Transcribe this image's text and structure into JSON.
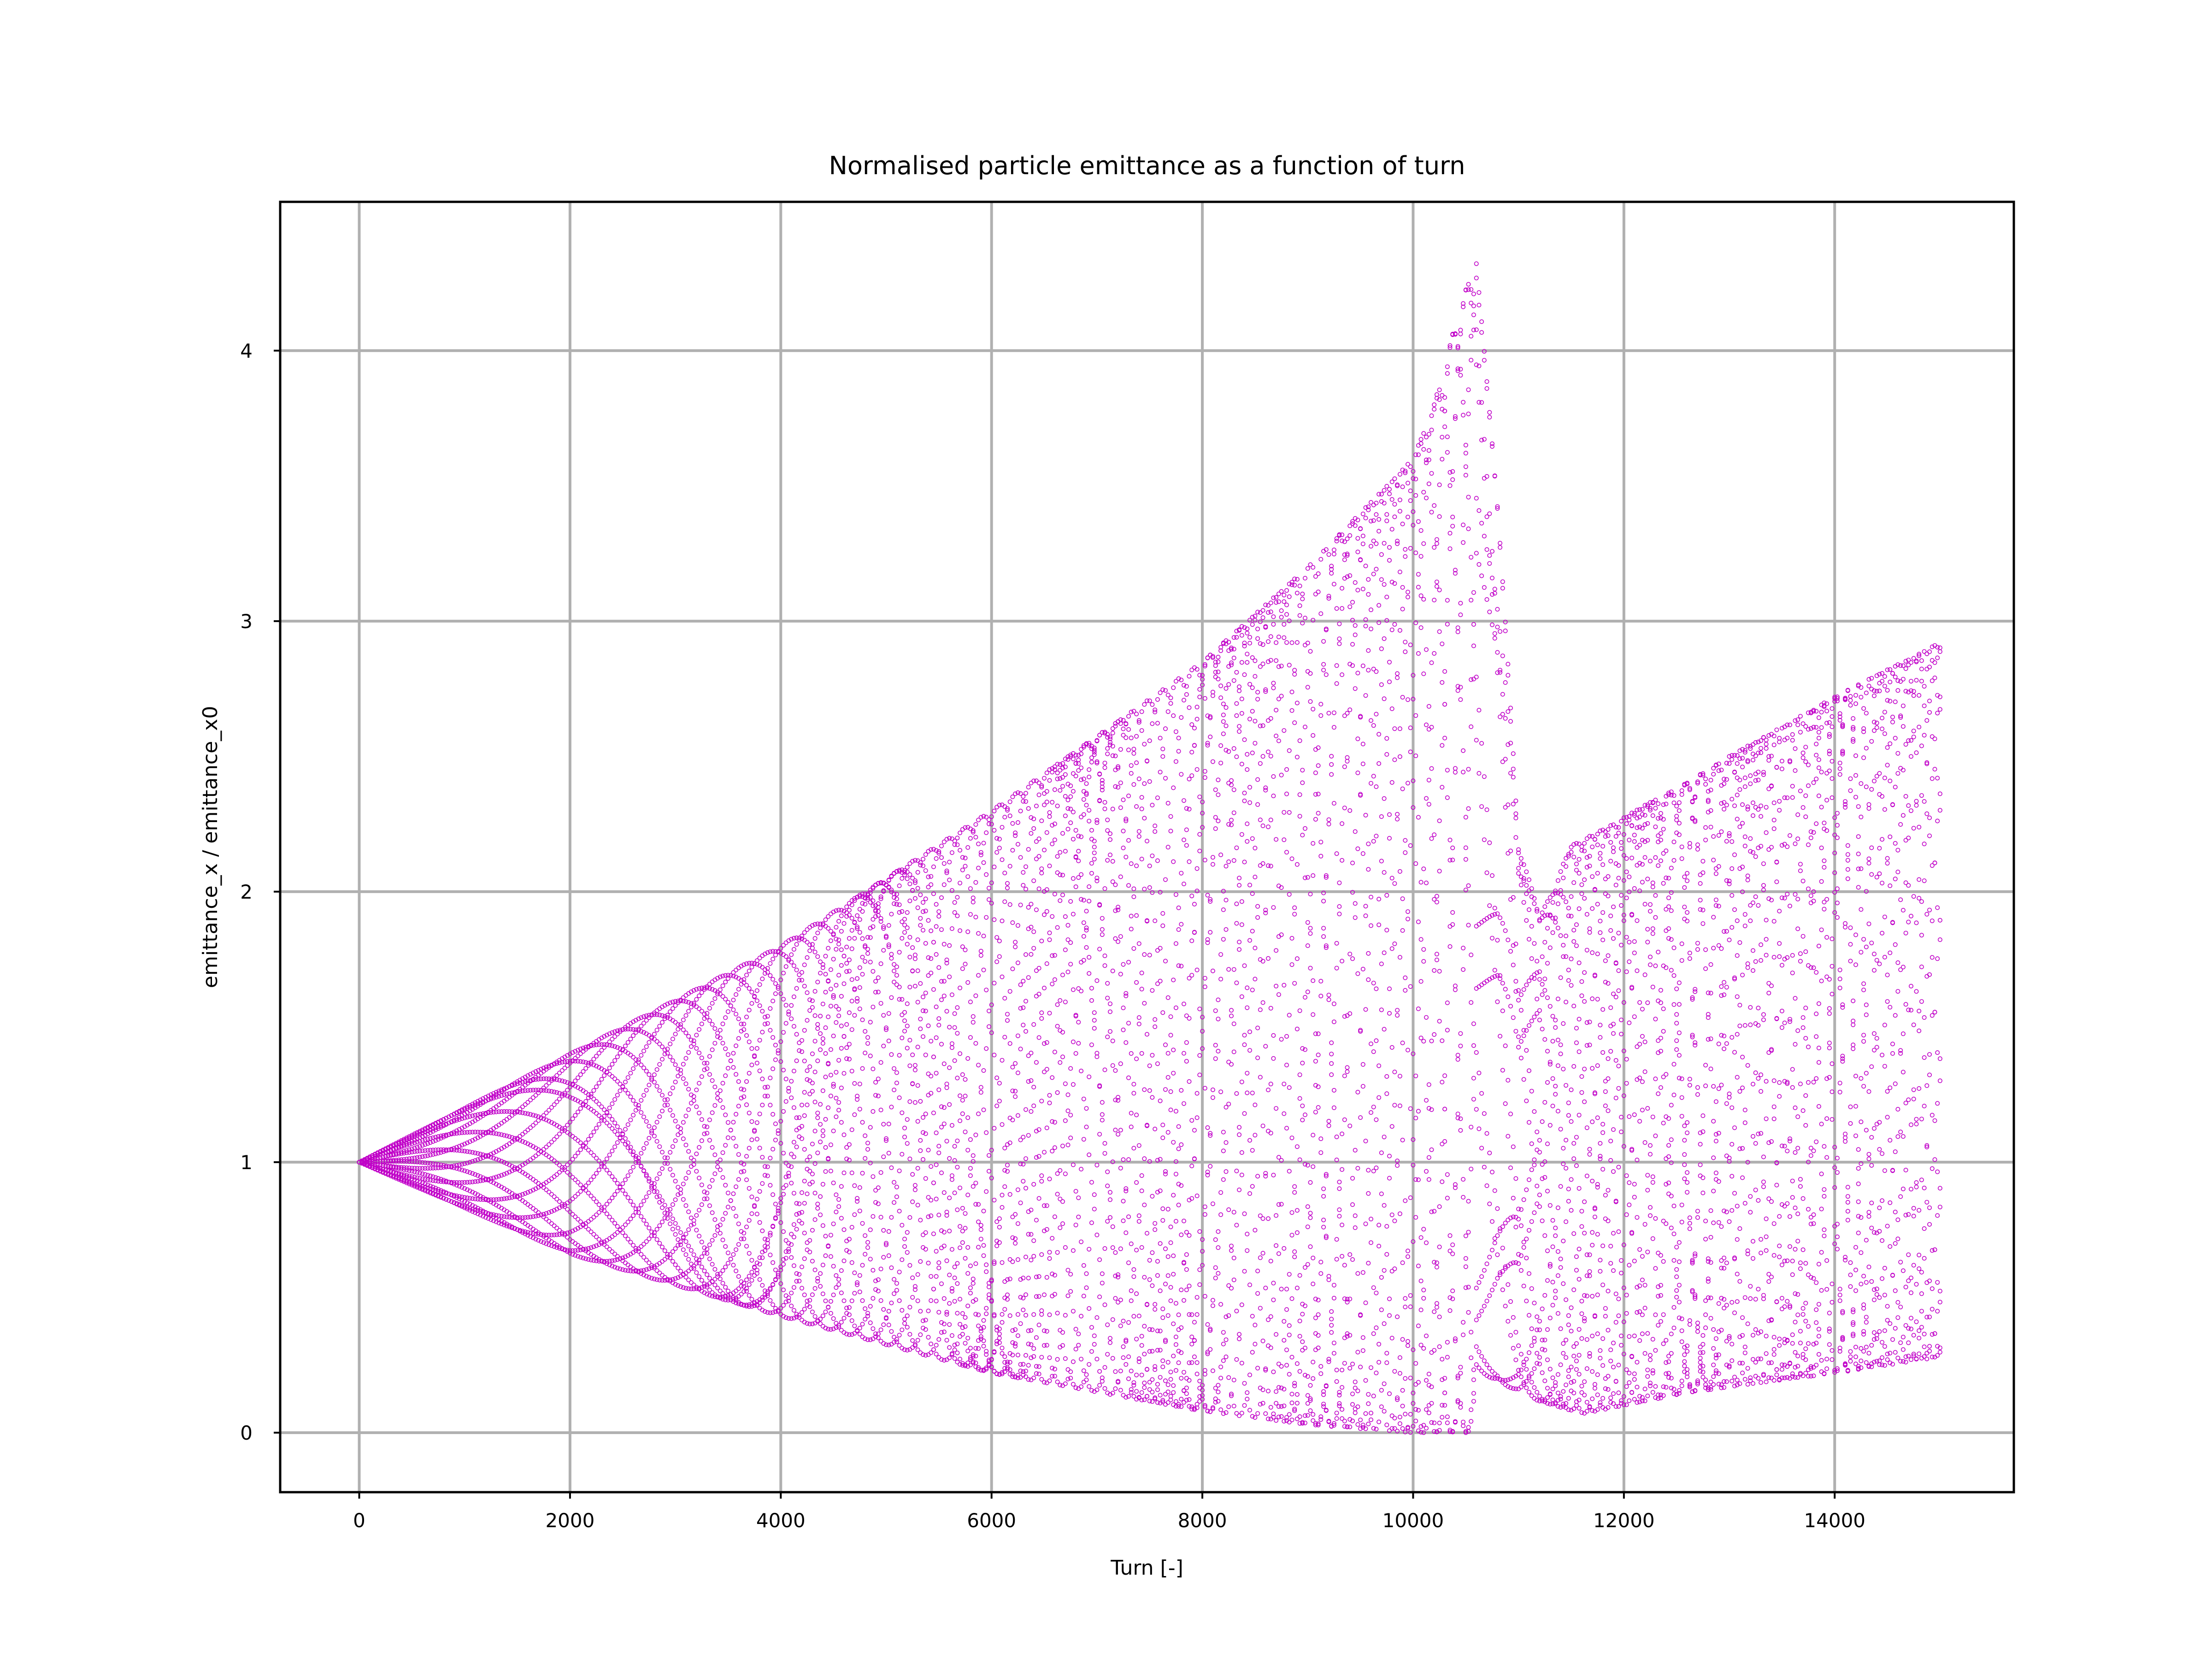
{
  "chart_data": {
    "type": "scatter",
    "title": "Normalised particle emittance as a function of turn",
    "xlabel": "Turn [-]",
    "ylabel": "emittance_x / emittance_x0",
    "xlim": [
      -750,
      15700
    ],
    "ylim": [
      -0.22,
      4.55
    ],
    "xticks": [
      0,
      2000,
      4000,
      6000,
      8000,
      10000,
      12000,
      14000
    ],
    "xtick_labels": [
      "0",
      "2000",
      "4000",
      "6000",
      "8000",
      "10000",
      "12000",
      "14000"
    ],
    "yticks": [
      0,
      1,
      2,
      3,
      4
    ],
    "ytick_labels": [
      "0",
      "1",
      "2",
      "3",
      "4"
    ],
    "grid": true,
    "marker": "hollow circle",
    "color": "#c000c8",
    "series": [
      {
        "values": {
          "turn_start": 0,
          "turn_end": 15000,
          "turn_step": 25,
          "upper_envelope": {
            "x": [
              0,
              2000,
              4000,
              6000,
              8000,
              9000,
              9500,
              10000,
              10200,
              10400,
              10600
            ],
            "y": [
              1.0,
              1.4,
              1.8,
              2.3,
              2.85,
              3.2,
              3.4,
              3.6,
              3.8,
              4.1,
              4.35
            ]
          },
          "lower_envelope": {
            "x": [
              0,
              2000,
              4000,
              6000,
              8000,
              9000,
              10000
            ],
            "y": [
              1.0,
              0.66,
              0.43,
              0.22,
              0.08,
              0.03,
              0.0
            ]
          },
          "late_upper_envelope": {
            "x": [
              10800,
              11200,
              11500,
              11900,
              12200,
              12500,
              13000,
              14000,
              15000
            ],
            "y": [
              2.5,
              1.9,
              2.17,
              2.25,
              2.32,
              2.38,
              2.5,
              2.72,
              2.92
            ]
          },
          "late_lower_envelope": {
            "x": [
              10800,
              11000,
              11600,
              12000,
              12500,
              13000,
              14000,
              15000
            ],
            "y": [
              0.2,
              0.14,
              0.07,
              0.1,
              0.14,
              0.17,
              0.22,
              0.28
            ]
          }
        }
      }
    ]
  }
}
